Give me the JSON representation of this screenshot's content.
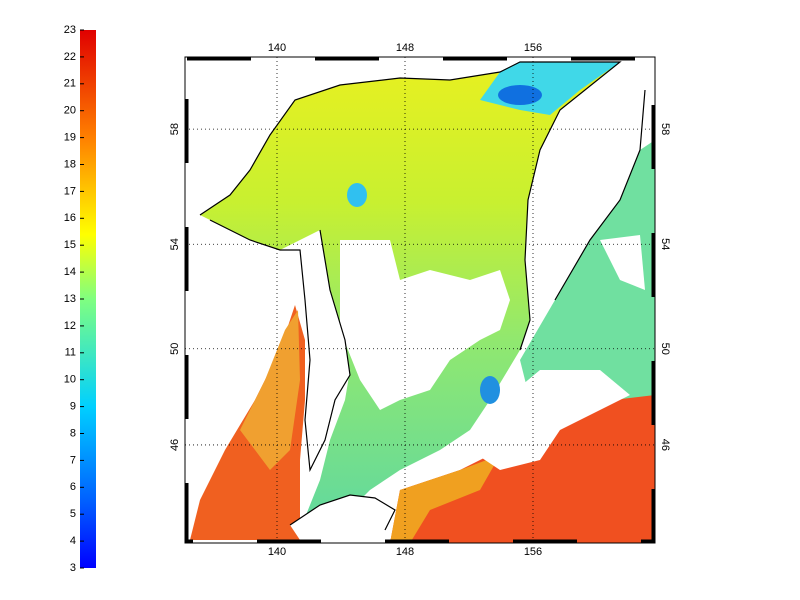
{
  "colorbar": {
    "lim": [
      3,
      23
    ],
    "ticks": [
      3,
      4,
      5,
      6,
      7,
      8,
      9,
      10,
      11,
      12,
      13,
      14,
      15,
      16,
      17,
      18,
      19,
      20,
      21,
      22,
      23
    ]
  },
  "map": {
    "xlim": [
      134.25,
      163.625
    ],
    "ylim": [
      41.6,
      60.3
    ],
    "xticks": [
      140,
      148,
      156
    ],
    "yticks": [
      46,
      50,
      54,
      58
    ],
    "grid": true
  }
}
